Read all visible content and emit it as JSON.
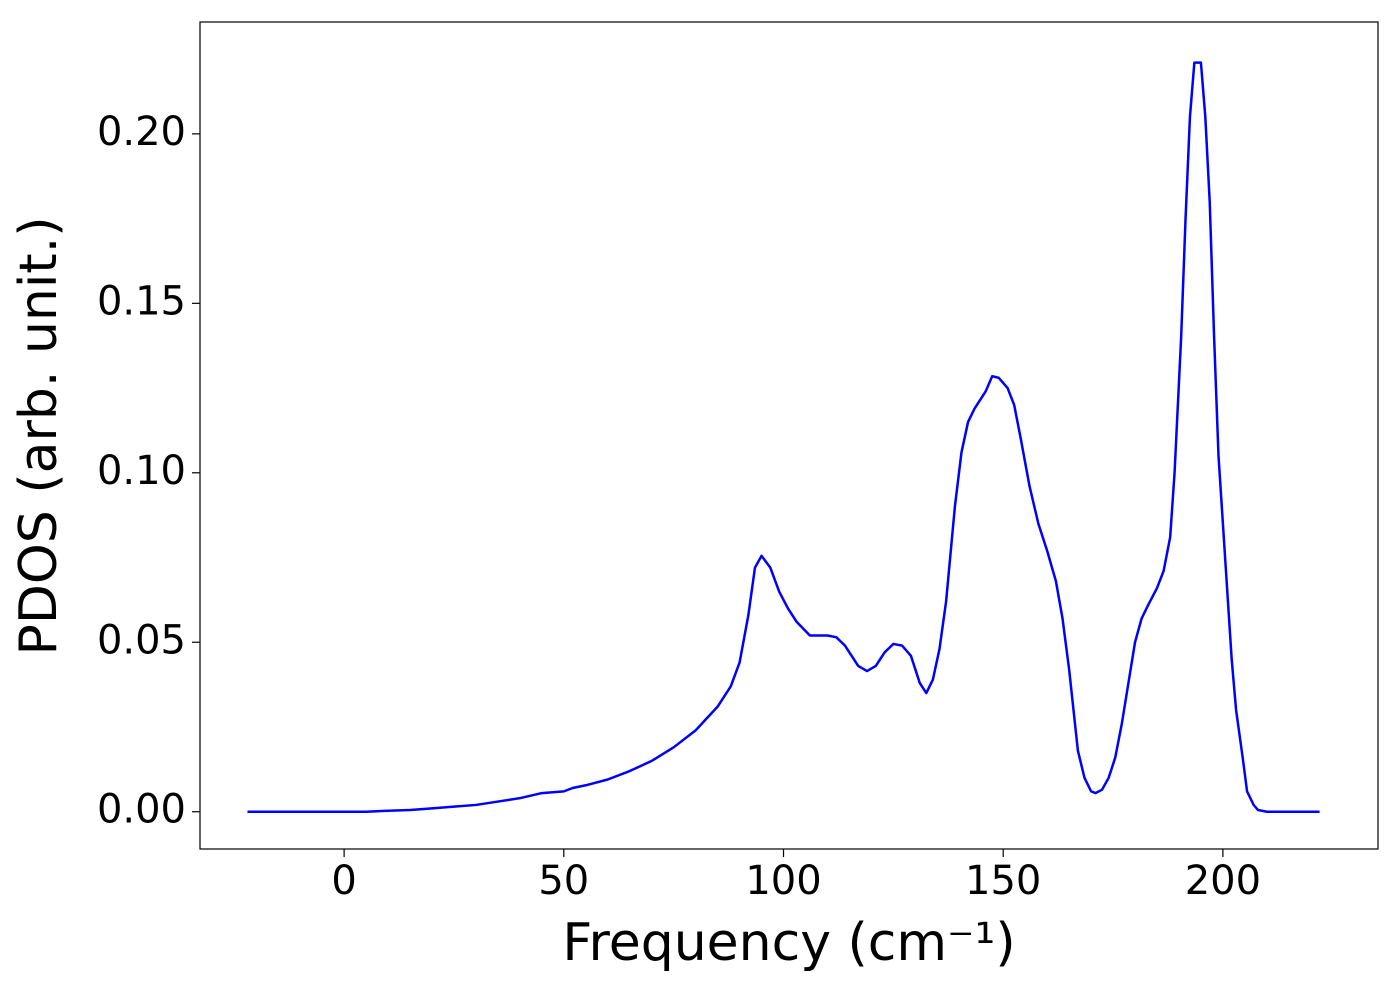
{
  "chart_data": {
    "type": "line",
    "xlabel": "Frequency (cm⁻¹)",
    "ylabel": "PDOS (arb. unit.)",
    "xlim": [
      -32.8,
      235.3
    ],
    "ylim": [
      -0.011,
      0.233
    ],
    "xticks": [
      0,
      50,
      100,
      150,
      200
    ],
    "yticks": [
      {
        "value": 0,
        "label": "0.00"
      },
      {
        "value": 0.05,
        "label": "0.05"
      },
      {
        "value": 0.1,
        "label": "0.10"
      },
      {
        "value": 0.15,
        "label": "0.15"
      },
      {
        "value": 0.2,
        "label": "0.20"
      }
    ],
    "grid": false,
    "series": [
      {
        "color": "#0000ff",
        "x": [
          -22,
          0,
          5,
          10,
          15,
          20,
          25,
          30,
          35,
          40,
          45,
          50,
          52,
          55,
          60,
          65,
          70,
          75,
          80,
          85,
          88,
          90,
          92,
          93.5,
          95,
          97,
          99,
          101,
          103,
          106,
          110,
          112,
          114,
          117,
          119,
          121,
          123,
          125,
          127,
          129,
          131,
          132.5,
          134,
          135.5,
          137,
          139,
          140.5,
          142,
          143.5,
          146,
          147.5,
          149,
          151,
          152.5,
          154,
          156,
          158,
          160,
          162,
          163.5,
          165,
          166,
          167,
          168.5,
          170,
          171,
          172.5,
          174,
          175.5,
          177,
          178.5,
          180,
          181.5,
          183,
          185,
          186.5,
          188,
          189,
          190.5,
          191.5,
          192.5,
          193.5,
          195,
          196,
          197,
          198,
          199,
          200.5,
          202,
          203,
          204.5,
          205.5,
          207,
          208,
          210,
          222
        ],
        "values": [
          0,
          0,
          0,
          0.0003,
          0.0005,
          0.001,
          0.0015,
          0.002,
          0.003,
          0.004,
          0.0055,
          0.006,
          0.007,
          0.0078,
          0.0095,
          0.012,
          0.015,
          0.019,
          0.024,
          0.031,
          0.037,
          0.044,
          0.058,
          0.072,
          0.0755,
          0.072,
          0.065,
          0.06,
          0.056,
          0.052,
          0.052,
          0.0515,
          0.049,
          0.043,
          0.0415,
          0.043,
          0.047,
          0.0495,
          0.049,
          0.046,
          0.038,
          0.035,
          0.039,
          0.048,
          0.062,
          0.09,
          0.106,
          0.115,
          0.119,
          0.124,
          0.1285,
          0.128,
          0.125,
          0.12,
          0.11,
          0.096,
          0.085,
          0.077,
          0.068,
          0.057,
          0.042,
          0.03,
          0.018,
          0.01,
          0.006,
          0.0055,
          0.0065,
          0.01,
          0.016,
          0.026,
          0.038,
          0.05,
          0.057,
          0.061,
          0.066,
          0.071,
          0.081,
          0.1,
          0.14,
          0.175,
          0.205,
          0.221,
          0.221,
          0.205,
          0.18,
          0.14,
          0.105,
          0.075,
          0.045,
          0.03,
          0.016,
          0.006,
          0.002,
          0.0005,
          0,
          0
        ]
      }
    ]
  }
}
